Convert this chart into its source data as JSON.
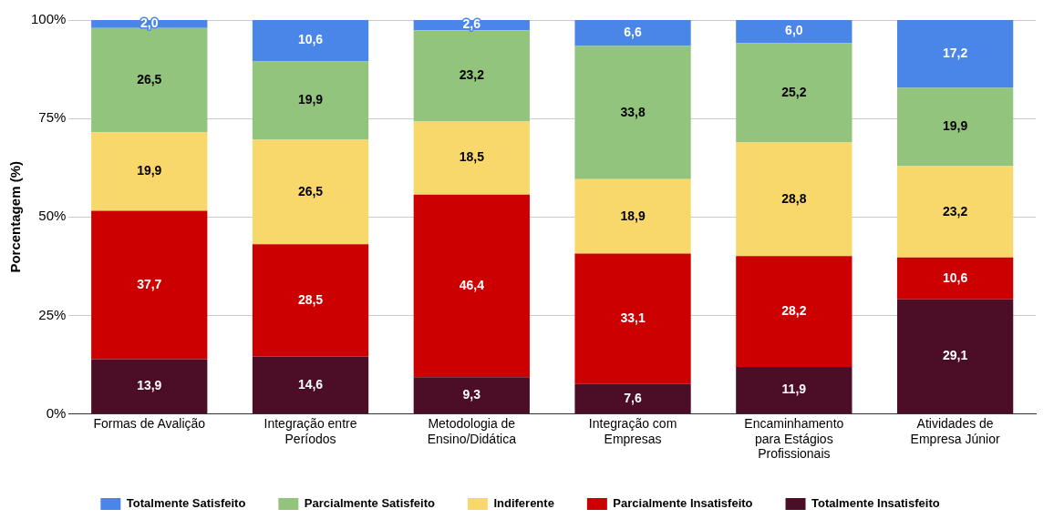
{
  "chart_data": {
    "type": "bar",
    "stacked": true,
    "ylabel": "Porcentagem (%)",
    "categories": [
      "Formas de Avalição",
      "Integração entre Períodos",
      "Metodologia de Ensino/Didática",
      "Integração com Empresas",
      "Encaminhamento para Estágios Profissionais",
      "Atividades de Empresa Júnior"
    ],
    "series": [
      {
        "name": "Totalmente Insatisfeito",
        "color": "#4c0d27",
        "values": [
          13.9,
          14.6,
          9.3,
          7.6,
          11.9,
          29.1
        ],
        "value_labels": [
          "13,9",
          "14,6",
          "9,3",
          "7,6",
          "11,9",
          "29,1"
        ]
      },
      {
        "name": "Parcialmente Insatisfeito",
        "color": "#cc0000",
        "values": [
          37.7,
          28.5,
          46.4,
          33.1,
          28.2,
          10.6
        ],
        "value_labels": [
          "37,7",
          "28,5",
          "46,4",
          "33,1",
          "28,2",
          "10,6"
        ]
      },
      {
        "name": "Indiferente",
        "color": "#f9d86b",
        "values": [
          19.9,
          26.5,
          18.5,
          18.9,
          28.8,
          23.2
        ],
        "value_labels": [
          "19,9",
          "26,5",
          "18,5",
          "18,9",
          "28,8",
          "23,2"
        ]
      },
      {
        "name": "Parcialmente Satisfeito",
        "color": "#93c47d",
        "values": [
          26.5,
          19.9,
          23.2,
          33.8,
          25.2,
          19.9
        ],
        "value_labels": [
          "26,5",
          "19,9",
          "23,2",
          "33,8",
          "25,2",
          "19,9"
        ]
      },
      {
        "name": "Totalmente Satisfeito",
        "color": "#4a86e8",
        "values": [
          2.0,
          10.6,
          2.6,
          6.6,
          6.0,
          17.2
        ],
        "value_labels": [
          "2,0",
          "10,6",
          "2,6",
          "6,6",
          "6,0",
          "17,2"
        ]
      }
    ],
    "ylim": [
      0,
      100
    ],
    "yticks": [
      {
        "value": 0,
        "label": "0%"
      },
      {
        "value": 25,
        "label": "25%"
      },
      {
        "value": 50,
        "label": "50%"
      },
      {
        "value": 75,
        "label": "75%"
      },
      {
        "value": 100,
        "label": "100%"
      }
    ],
    "grid": "y",
    "legend": "bottom"
  }
}
